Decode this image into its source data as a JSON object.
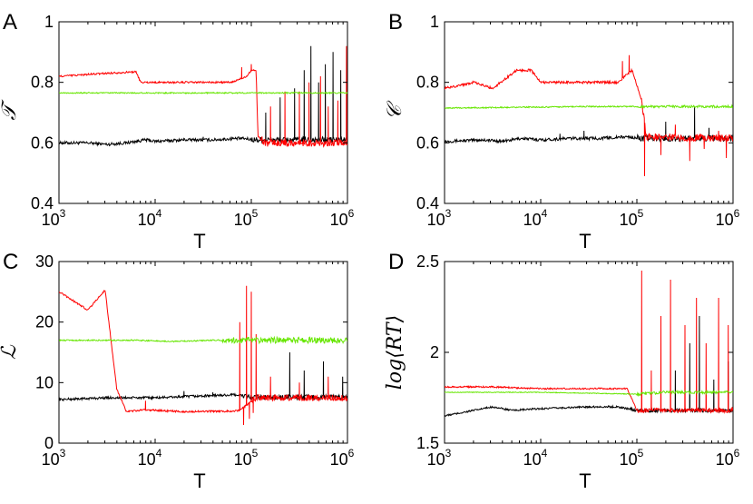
{
  "colors": {
    "black_series": "#000000",
    "red_series": "#ff0000",
    "green_series": "#66e600"
  },
  "chart_data": [
    {
      "panel_label": "A",
      "type": "line",
      "xscale": "log",
      "xlim": [
        1000,
        1000000
      ],
      "xticks": [
        {
          "base": "10",
          "exp": "3"
        },
        {
          "base": "10",
          "exp": "4"
        },
        {
          "base": "10",
          "exp": "5"
        },
        {
          "base": "10",
          "exp": "6"
        }
      ],
      "xlabel": "T",
      "ylabel": "𝒯",
      "ylim": [
        0.4,
        1.0
      ],
      "yticks": [
        "0.4",
        "0.6",
        "0.8",
        "1"
      ],
      "series": [
        {
          "name": "black",
          "color": "#000000",
          "base": [
            [
              3,
              0.6
            ],
            [
              3.3,
              0.6
            ],
            [
              3.5,
              0.595
            ],
            [
              3.7,
              0.6
            ],
            [
              3.9,
              0.61
            ],
            [
              4.0,
              0.605
            ],
            [
              4.3,
              0.61
            ],
            [
              4.6,
              0.61
            ],
            [
              4.9,
              0.615
            ],
            [
              5.05,
              0.61
            ],
            [
              5.3,
              0.61
            ],
            [
              6,
              0.61
            ]
          ],
          "noise": 0.005,
          "noise_after": 0.01,
          "noise_from": 5.0,
          "spikes": [
            [
              4.3,
              0.615
            ],
            [
              4.5,
              0.62
            ],
            [
              4.8,
              0.62
            ],
            [
              5.15,
              0.7
            ],
            [
              5.3,
              0.75
            ],
            [
              5.45,
              0.78
            ],
            [
              5.55,
              0.84
            ],
            [
              5.62,
              0.92
            ],
            [
              5.7,
              0.8
            ],
            [
              5.77,
              0.86
            ],
            [
              5.85,
              0.9
            ],
            [
              5.93,
              0.84
            ]
          ]
        },
        {
          "name": "red",
          "color": "#ff0000",
          "base": [
            [
              3,
              0.82
            ],
            [
              3.5,
              0.83
            ],
            [
              3.8,
              0.835
            ],
            [
              3.85,
              0.8
            ],
            [
              4.4,
              0.8
            ],
            [
              4.8,
              0.8
            ],
            [
              4.95,
              0.82
            ],
            [
              5.0,
              0.84
            ],
            [
              5.05,
              0.84
            ],
            [
              5.07,
              0.62
            ],
            [
              5.15,
              0.6
            ],
            [
              6,
              0.6
            ]
          ],
          "noise": 0.003,
          "noise_after": 0.012,
          "noise_from": 5.1,
          "spikes": [
            [
              4.9,
              0.85
            ],
            [
              5.0,
              0.86
            ],
            [
              5.2,
              0.72
            ],
            [
              5.35,
              0.77
            ],
            [
              5.5,
              0.77
            ],
            [
              5.6,
              0.8
            ],
            [
              5.72,
              0.82
            ],
            [
              5.8,
              0.72
            ],
            [
              5.9,
              0.74
            ],
            [
              5.99,
              0.92
            ]
          ]
        },
        {
          "name": "green",
          "color": "#66e600",
          "base": [
            [
              3,
              0.765
            ],
            [
              6,
              0.765
            ]
          ],
          "noise": 0.002,
          "noise_after": 0.002,
          "noise_from": 6,
          "spikes": []
        }
      ]
    },
    {
      "panel_label": "B",
      "type": "line",
      "xscale": "log",
      "xlim": [
        1000,
        1000000
      ],
      "xticks": [
        {
          "base": "10",
          "exp": "3"
        },
        {
          "base": "10",
          "exp": "4"
        },
        {
          "base": "10",
          "exp": "5"
        },
        {
          "base": "10",
          "exp": "6"
        }
      ],
      "xlabel": "T",
      "ylabel": "𝒞",
      "ylim": [
        0.4,
        1.0
      ],
      "yticks": [
        "0.4",
        "0.6",
        "0.8",
        "1"
      ],
      "series": [
        {
          "name": "black",
          "color": "#000000",
          "base": [
            [
              3,
              0.605
            ],
            [
              3.4,
              0.61
            ],
            [
              3.6,
              0.605
            ],
            [
              3.8,
              0.615
            ],
            [
              4.0,
              0.61
            ],
            [
              4.3,
              0.615
            ],
            [
              4.6,
              0.615
            ],
            [
              4.9,
              0.62
            ],
            [
              5.05,
              0.615
            ],
            [
              6,
              0.615
            ]
          ],
          "noise": 0.005,
          "noise_after": 0.01,
          "noise_from": 5.0,
          "spikes": [
            [
              4.2,
              0.63
            ],
            [
              4.45,
              0.64
            ],
            [
              5.3,
              0.67
            ],
            [
              5.6,
              0.72
            ],
            [
              5.75,
              0.65
            ]
          ]
        },
        {
          "name": "red",
          "color": "#ff0000",
          "base": [
            [
              3,
              0.78
            ],
            [
              3.3,
              0.8
            ],
            [
              3.5,
              0.78
            ],
            [
              3.75,
              0.84
            ],
            [
              3.9,
              0.84
            ],
            [
              4.0,
              0.8
            ],
            [
              4.5,
              0.8
            ],
            [
              4.8,
              0.8
            ],
            [
              4.95,
              0.84
            ],
            [
              5.05,
              0.74
            ],
            [
              5.1,
              0.62
            ],
            [
              6,
              0.615
            ]
          ],
          "noise": 0.004,
          "noise_after": 0.012,
          "noise_from": 5.05,
          "spikes": [
            [
              4.85,
              0.87
            ],
            [
              4.92,
              0.89
            ],
            [
              5.08,
              0.49
            ],
            [
              5.25,
              0.56
            ],
            [
              5.4,
              0.66
            ],
            [
              5.55,
              0.54
            ],
            [
              5.7,
              0.58
            ],
            [
              5.85,
              0.64
            ],
            [
              5.93,
              0.55
            ]
          ]
        },
        {
          "name": "green",
          "color": "#66e600",
          "base": [
            [
              3,
              0.715
            ],
            [
              4.5,
              0.72
            ],
            [
              6,
              0.72
            ]
          ],
          "noise": 0.002,
          "noise_after": 0.004,
          "noise_from": 5.0,
          "spikes": []
        }
      ]
    },
    {
      "panel_label": "C",
      "type": "line",
      "xscale": "log",
      "xlim": [
        1000,
        1000000
      ],
      "xticks": [
        {
          "base": "10",
          "exp": "3"
        },
        {
          "base": "10",
          "exp": "4"
        },
        {
          "base": "10",
          "exp": "5"
        },
        {
          "base": "10",
          "exp": "6"
        }
      ],
      "xlabel": "T",
      "ylabel": "ℒ",
      "ylim": [
        0,
        30
      ],
      "yticks": [
        "0",
        "10",
        "20",
        "30"
      ],
      "series": [
        {
          "name": "black",
          "color": "#000000",
          "base": [
            [
              3,
              7.2
            ],
            [
              3.5,
              7.5
            ],
            [
              4.0,
              7.5
            ],
            [
              4.5,
              7.8
            ],
            [
              4.85,
              8.0
            ],
            [
              5.0,
              7.6
            ],
            [
              6,
              7.6
            ]
          ],
          "noise": 0.2,
          "noise_after": 0.4,
          "noise_from": 4.9,
          "spikes": [
            [
              4.3,
              8.6
            ],
            [
              4.6,
              8.4
            ],
            [
              5.4,
              15
            ],
            [
              5.55,
              12
            ],
            [
              5.75,
              13.5
            ],
            [
              5.95,
              11
            ]
          ]
        },
        {
          "name": "red",
          "color": "#ff0000",
          "base": [
            [
              3,
              25
            ],
            [
              3.3,
              22
            ],
            [
              3.48,
              25.3
            ],
            [
              3.6,
              9
            ],
            [
              3.7,
              5.2
            ],
            [
              3.9,
              5.5
            ],
            [
              4.3,
              5.2
            ],
            [
              4.8,
              5.3
            ],
            [
              4.88,
              5.4
            ],
            [
              5.05,
              7.5
            ],
            [
              6,
              7.5
            ]
          ],
          "noise": 0.15,
          "noise_after": 0.5,
          "noise_from": 5.0,
          "spikes": [
            [
              3.9,
              7
            ],
            [
              4.88,
              20
            ],
            [
              4.92,
              3
            ],
            [
              4.95,
              26
            ],
            [
              4.98,
              4
            ],
            [
              5.0,
              25
            ],
            [
              5.02,
              5
            ],
            [
              5.05,
              18
            ],
            [
              5.2,
              11
            ],
            [
              5.5,
              10
            ],
            [
              5.8,
              11
            ]
          ]
        },
        {
          "name": "green",
          "color": "#66e600",
          "base": [
            [
              3,
              17
            ],
            [
              3.8,
              17
            ],
            [
              4.2,
              16.8
            ],
            [
              4.6,
              17
            ],
            [
              5.0,
              17
            ],
            [
              6,
              17
            ]
          ],
          "noise": 0.1,
          "noise_after": 0.5,
          "noise_from": 4.7,
          "spikes": []
        }
      ]
    },
    {
      "panel_label": "D",
      "type": "line",
      "xscale": "log",
      "xlim": [
        1000,
        1000000
      ],
      "xticks": [
        {
          "base": "10",
          "exp": "3"
        },
        {
          "base": "10",
          "exp": "4"
        },
        {
          "base": "10",
          "exp": "5"
        },
        {
          "base": "10",
          "exp": "6"
        }
      ],
      "xlabel": "T",
      "ylabel": "log⟨RT⟩",
      "ylim": [
        1.5,
        2.5
      ],
      "yticks": [
        "1.5",
        "2",
        "2.5"
      ],
      "series": [
        {
          "name": "black",
          "color": "#000000",
          "base": [
            [
              3,
              1.65
            ],
            [
              3.5,
              1.7
            ],
            [
              3.7,
              1.68
            ],
            [
              4.0,
              1.69
            ],
            [
              4.5,
              1.7
            ],
            [
              4.8,
              1.7
            ],
            [
              5.0,
              1.68
            ],
            [
              6,
              1.68
            ]
          ],
          "noise": 0.005,
          "noise_after": 0.01,
          "noise_from": 4.9,
          "spikes": [
            [
              5.4,
              1.9
            ],
            [
              5.55,
              2.05
            ],
            [
              5.65,
              2.2
            ],
            [
              5.8,
              1.85
            ],
            [
              5.95,
              1.95
            ]
          ]
        },
        {
          "name": "red",
          "color": "#ff0000",
          "base": [
            [
              3,
              1.81
            ],
            [
              3.5,
              1.81
            ],
            [
              4.0,
              1.8
            ],
            [
              4.5,
              1.8
            ],
            [
              4.9,
              1.8
            ],
            [
              5.0,
              1.68
            ],
            [
              6,
              1.68
            ]
          ],
          "noise": 0.004,
          "noise_after": 0.012,
          "noise_from": 5.0,
          "spikes": [
            [
              5.05,
              2.45
            ],
            [
              5.15,
              1.9
            ],
            [
              5.25,
              2.2
            ],
            [
              5.35,
              2.4
            ],
            [
              5.5,
              2.15
            ],
            [
              5.62,
              2.3
            ],
            [
              5.72,
              2.05
            ],
            [
              5.85,
              2.3
            ],
            [
              5.95,
              2.15
            ]
          ]
        },
        {
          "name": "green",
          "color": "#66e600",
          "base": [
            [
              3,
              1.78
            ],
            [
              4.0,
              1.78
            ],
            [
              5.0,
              1.77
            ],
            [
              5.3,
              1.78
            ],
            [
              6,
              1.78
            ]
          ],
          "noise": 0.002,
          "noise_after": 0.008,
          "noise_from": 5.0,
          "spikes": []
        }
      ]
    }
  ]
}
